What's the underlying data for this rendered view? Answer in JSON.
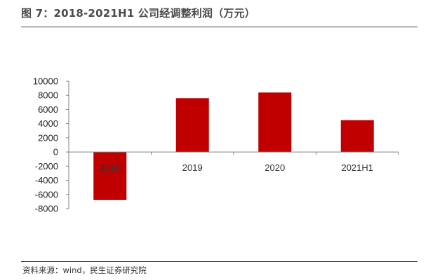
{
  "title": "图 7：2018-2021H1 公司经调整利润（万元）",
  "source": "资料来源：wind，民生证券研究院",
  "chart_data": {
    "type": "bar",
    "categories": [
      "2018",
      "2019",
      "2020",
      "2021H1"
    ],
    "values": [
      -6800,
      7600,
      8400,
      4500
    ],
    "ylim": [
      -8000,
      10000
    ],
    "yticks": [
      10000,
      8000,
      6000,
      4000,
      2000,
      0,
      -2000,
      -4000,
      -6000,
      -8000
    ],
    "bar_color": "#c00000",
    "grid": false,
    "legend": "none"
  }
}
